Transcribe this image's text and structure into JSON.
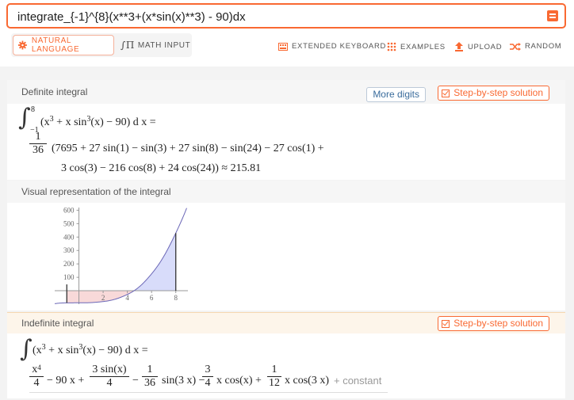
{
  "search": {
    "value": "integrate_{-1}^{8}(x**3+(x*sin(x)**3) - 90)dx"
  },
  "modes": {
    "natural": "NATURAL LANGUAGE",
    "math": "MATH INPUT"
  },
  "tools": {
    "keyboard": "EXTENDED KEYBOARD",
    "examples": "EXAMPLES",
    "upload": "UPLOAD",
    "random": "RANDOM"
  },
  "definite": {
    "title": "Definite integral",
    "more_digits": "More digits",
    "step": "Step-by-step solution",
    "lower": "−1",
    "upper": "8",
    "integrand_a": "(x",
    "integrand_b": " + x sin",
    "integrand_c": "(x) − 90)",
    "dx": " d x =",
    "frac_num": "1",
    "frac_den": "36",
    "line1": "(7695 + 27 sin(1) − sin(3) + 27 sin(8) − sin(24) − 27 cos(1) +",
    "line2": "3 cos(3) − 216 cos(8) + 24 cos(24)) ≈ 215.81"
  },
  "visual": {
    "title": "Visual representation of the integral"
  },
  "indefinite": {
    "title": "Indefinite integral",
    "step": "Step-by-step solution",
    "lhs_a": "(x",
    "lhs_b": " + x sin",
    "lhs_c": "(x) − 90) d x =",
    "f1_num": "x",
    "f1_den": "4",
    "t1": "− 90 x +",
    "f2_num": "3 sin(x)",
    "f2_den": "4",
    "t2": "−",
    "f3_num": "1",
    "f3_den": "36",
    "t3": "sin(3 x) −",
    "f4_num": "3",
    "f4_den": "4",
    "t4": "x cos(x) +",
    "f5_num": "1",
    "f5_den": "12",
    "t5": "x cos(3 x)",
    "constant": "+ constant"
  },
  "chart_data": {
    "type": "area",
    "x_ticks": [
      "2",
      "4",
      "6",
      "8"
    ],
    "y_ticks": [
      "100",
      "200",
      "300",
      "400",
      "500",
      "600"
    ],
    "xlim": [
      -2,
      9
    ],
    "ylim": [
      -100,
      620
    ],
    "integral_bounds": [
      -1,
      8
    ],
    "function": "x^3 + x sin(x)^3 - 90",
    "colors": {
      "positive_fill": "#d8dcfa",
      "negative_fill": "#f8d9d9",
      "curve": "#6b67b7"
    }
  }
}
